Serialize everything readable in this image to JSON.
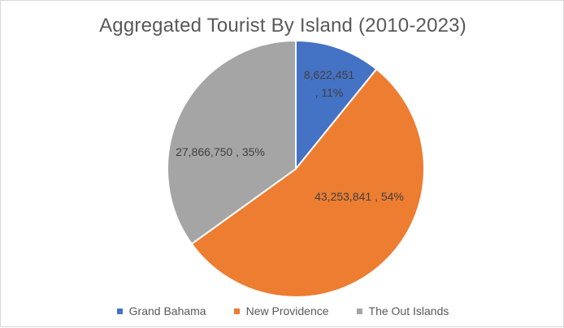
{
  "chart_data": {
    "type": "pie",
    "title": "Aggregated Tourist By Island (2010-2023)",
    "start_angle": "12 o'clock, clockwise",
    "legend_position": "bottom",
    "slices": [
      {
        "name": "Grand Bahama",
        "value": 8622451,
        "label_value": "8,622,451",
        "label_percent": "11%",
        "color": "#4472C4"
      },
      {
        "name": "New Providence",
        "value": 43253841,
        "label_value": "43,253,841",
        "label_percent": "54%",
        "color": "#ED7D31"
      },
      {
        "name": "The Out Islands",
        "value": 27866750,
        "label_value": "27,866,750",
        "label_percent": "35%",
        "color": "#A5A5A5"
      }
    ]
  }
}
